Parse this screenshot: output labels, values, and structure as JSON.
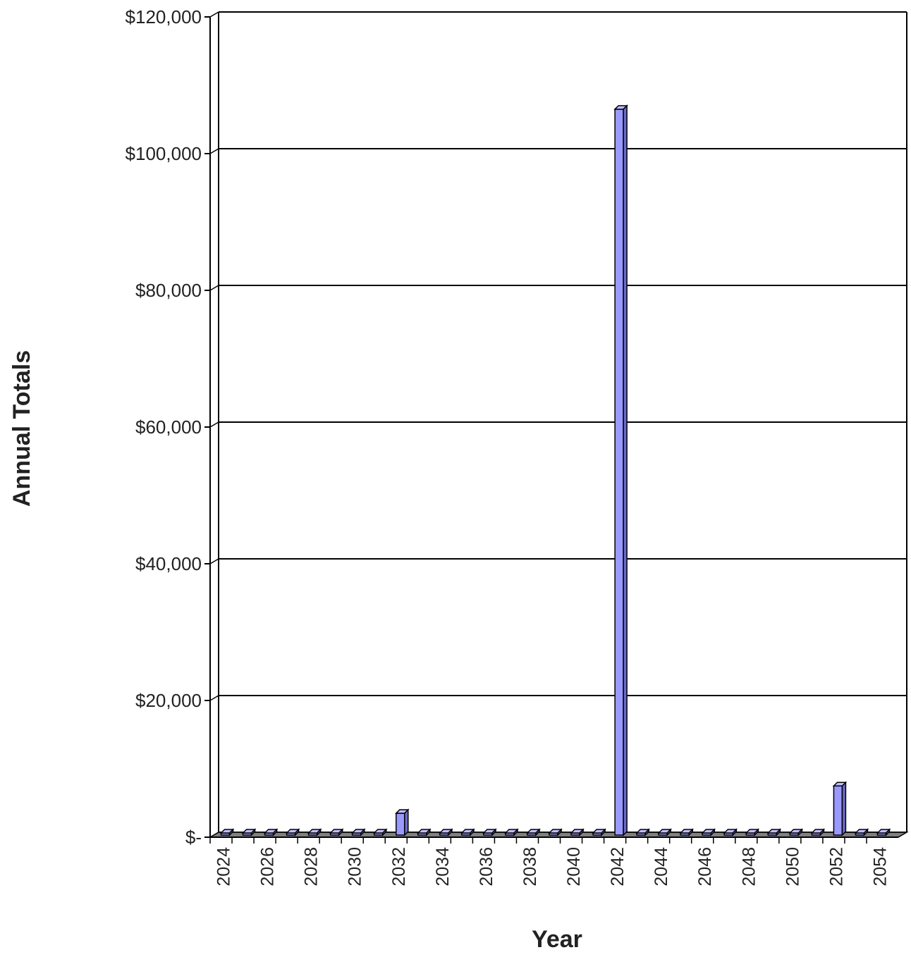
{
  "chart_data": {
    "type": "bar",
    "title": "",
    "xlabel": "Year",
    "ylabel": "Annual Totals",
    "ylim": [
      0,
      120000
    ],
    "yticks": [
      0,
      20000,
      40000,
      60000,
      80000,
      100000,
      120000
    ],
    "ytick_labels": [
      "$-",
      "$20,000",
      "$40,000",
      "$60,000",
      "$80,000",
      "$100,000",
      "$120,000"
    ],
    "categories": [
      "2024",
      "2025",
      "2026",
      "2027",
      "2028",
      "2029",
      "2030",
      "2031",
      "2032",
      "2033",
      "2034",
      "2035",
      "2036",
      "2037",
      "2038",
      "2039",
      "2040",
      "2041",
      "2042",
      "2043",
      "2044",
      "2045",
      "2046",
      "2047",
      "2048",
      "2049",
      "2050",
      "2051",
      "2052",
      "2053",
      "2054"
    ],
    "xtick_labels": [
      "2024",
      "2026",
      "2028",
      "2030",
      "2032",
      "2034",
      "2036",
      "2038",
      "2040",
      "2042",
      "2044",
      "2046",
      "2048",
      "2050",
      "2052",
      "2054"
    ],
    "values": [
      0,
      0,
      0,
      0,
      0,
      0,
      0,
      0,
      3500,
      0,
      0,
      0,
      0,
      0,
      0,
      0,
      0,
      0,
      106500,
      0,
      0,
      0,
      0,
      0,
      0,
      0,
      0,
      0,
      7500,
      0,
      0
    ],
    "grid": true,
    "legend": "none",
    "bar_color": "#9999ff",
    "floor_color": "#808080"
  }
}
